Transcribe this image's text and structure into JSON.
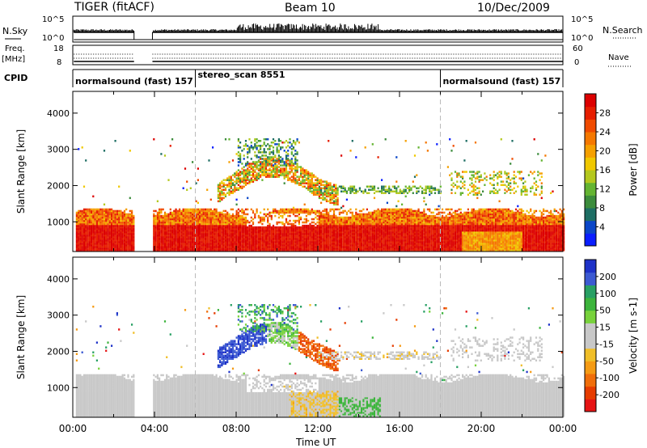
{
  "header": {
    "station": "TIGER (fitACF)",
    "beam": "Beam 10",
    "date": "10/Dec/2009"
  },
  "top_panels": {
    "nsky_label": "N.Sky",
    "nsky_ticks": [
      "10^5",
      "10^0"
    ],
    "nsearch_label": "N.Search",
    "nsearch_ticks": [
      "10^5",
      "10^0"
    ],
    "freq_label": "Freq.",
    "freq_unit": "[MHz]",
    "freq_ticks": [
      "18",
      "8"
    ],
    "nave_label": "Nave",
    "nave_ticks": [
      "60",
      "0"
    ],
    "cpid_label": "CPID",
    "cpid_segments": [
      {
        "label": "normalsound (fast) 157",
        "start_h": 0,
        "end_h": 6.0
      },
      {
        "label": "stereo_scan 8551",
        "start_h": 6.0,
        "end_h": 18.0
      },
      {
        "label": "normalsound (fast) 157",
        "start_h": 18.0,
        "end_h": 24.0
      }
    ]
  },
  "x_axis": {
    "label": "Time UT",
    "ticks": [
      "00:00",
      "04:00",
      "08:00",
      "12:00",
      "16:00",
      "20:00",
      "00:00"
    ]
  },
  "chart_data": [
    {
      "type": "heatmap",
      "name": "Power",
      "ylabel": "Slant Range [km]",
      "xlabel": "Time UT",
      "xlim_hours": [
        0,
        24
      ],
      "ylim_km": [
        180,
        4600
      ],
      "yticks": [
        1000,
        2000,
        3000,
        4000
      ],
      "colorbar": {
        "label": "Power [dB]",
        "ticks": [
          "4",
          "8",
          "12",
          "16",
          "20",
          "24",
          "28"
        ],
        "range": [
          0,
          32
        ],
        "colors": [
          "#0a1eff",
          "#0a46c8",
          "#1e6e64",
          "#3c8c3c",
          "#64b432",
          "#b4c81e",
          "#f0c800",
          "#f5a000",
          "#f57800",
          "#f04b00",
          "#e61e00",
          "#dc0000"
        ]
      },
      "data_gap_hours": [
        [
          3.0,
          3.9
        ]
      ],
      "regions": [
        {
          "t0": 0.2,
          "t1": 24,
          "r0": 200,
          "r1": 1350,
          "level": "high"
        },
        {
          "t0": 7.5,
          "t1": 12.5,
          "r0": 1500,
          "r1": 2500,
          "level": "medium"
        },
        {
          "t0": 8.5,
          "t1": 10.5,
          "r0": 2500,
          "r1": 3300,
          "level": "low"
        }
      ]
    },
    {
      "type": "heatmap",
      "name": "Velocity",
      "ylabel": "Slant Range [km]",
      "xlabel": "Time UT",
      "xlim_hours": [
        0,
        24
      ],
      "ylim_km": [
        180,
        4600
      ],
      "yticks": [
        1000,
        2000,
        3000,
        4000
      ],
      "colorbar": {
        "label": "Velocity [m s-1]",
        "ticks": [
          "200",
          "100",
          "50",
          "15",
          "-15",
          "-50",
          "-100",
          "-200"
        ],
        "colors": [
          "#1e32c8",
          "#3c5ad2",
          "#28a064",
          "#3cb43c",
          "#78d23c",
          "#c8c8c8",
          "#c8c8c8",
          "#f0be28",
          "#f59b14",
          "#f06e0a",
          "#e63c00",
          "#e61414"
        ]
      },
      "data_gap_hours": [
        [
          3.0,
          3.9
        ]
      ],
      "regions": [
        {
          "t0": 0.2,
          "t1": 24,
          "r0": 200,
          "r1": 1350,
          "level": "ground"
        },
        {
          "t0": 8.5,
          "t1": 12.5,
          "r0": 1800,
          "r1": 2600,
          "level": "mixed"
        }
      ]
    }
  ]
}
